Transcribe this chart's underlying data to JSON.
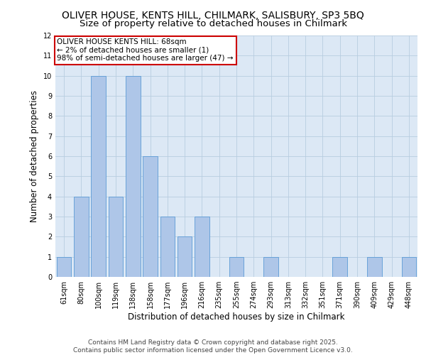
{
  "title1": "OLIVER HOUSE, KENTS HILL, CHILMARK, SALISBURY, SP3 5BQ",
  "title2": "Size of property relative to detached houses in Chilmark",
  "xlabel": "Distribution of detached houses by size in Chilmark",
  "ylabel": "Number of detached properties",
  "categories": [
    "61sqm",
    "80sqm",
    "100sqm",
    "119sqm",
    "138sqm",
    "158sqm",
    "177sqm",
    "196sqm",
    "216sqm",
    "235sqm",
    "255sqm",
    "274sqm",
    "293sqm",
    "313sqm",
    "332sqm",
    "351sqm",
    "371sqm",
    "390sqm",
    "409sqm",
    "429sqm",
    "448sqm"
  ],
  "values": [
    1,
    4,
    10,
    4,
    10,
    6,
    3,
    2,
    3,
    0,
    1,
    0,
    1,
    0,
    0,
    0,
    1,
    0,
    1,
    0,
    1
  ],
  "bar_color": "#aec6e8",
  "bar_edge_color": "#5b9bd5",
  "background_color": "#dce8f5",
  "grid_color": "#b8cde0",
  "annotation_text": "OLIVER HOUSE KENTS HILL: 68sqm\n← 2% of detached houses are smaller (1)\n98% of semi-detached houses are larger (47) →",
  "annotation_box_color": "#ffffff",
  "annotation_box_edge": "#cc0000",
  "ylim": [
    0,
    12
  ],
  "yticks": [
    0,
    1,
    2,
    3,
    4,
    5,
    6,
    7,
    8,
    9,
    10,
    11,
    12
  ],
  "footer": "Contains HM Land Registry data © Crown copyright and database right 2025.\nContains public sector information licensed under the Open Government Licence v3.0.",
  "title_fontsize": 10,
  "subtitle_fontsize": 9.5,
  "axis_label_fontsize": 8.5,
  "tick_fontsize": 7,
  "annotation_fontsize": 7.5,
  "footer_fontsize": 6.5
}
